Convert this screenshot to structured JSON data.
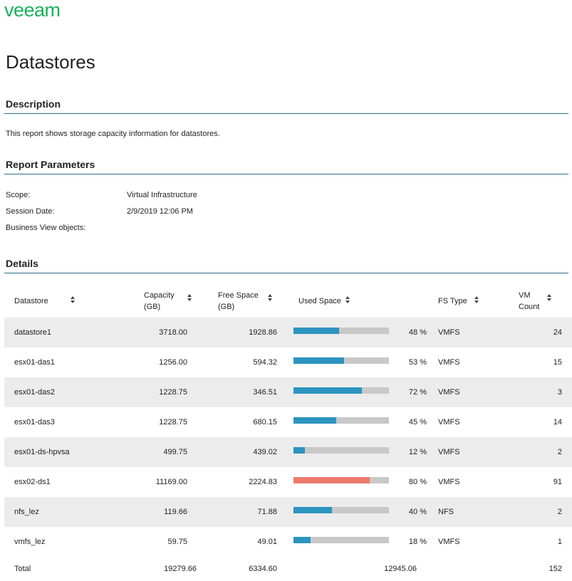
{
  "brand": {
    "name": "veeam",
    "color": "#17b35a"
  },
  "page": {
    "title": "Datastores"
  },
  "sections": {
    "description": "Description",
    "parameters": "Report Parameters",
    "details": "Details"
  },
  "description_text": "This report shows storage capacity information for datastores.",
  "parameters": [
    {
      "label": "Scope:",
      "value": "Virtual Infrastructure"
    },
    {
      "label": "Session Date:",
      "value": "2/9/2019 12:06 PM"
    },
    {
      "label": "Business View objects:",
      "value": ""
    }
  ],
  "table": {
    "headers": {
      "datastore": "Datastore",
      "capacity_1": "Capacity",
      "capacity_2": "(GB)",
      "free_1": "Free Space",
      "free_2": "(GB)",
      "used": "Used Space",
      "fs": "FS Type",
      "vm_1": "VM",
      "vm_2": "Count"
    },
    "rows": [
      {
        "name": "datastore1",
        "capacity": "3718.00",
        "free": "1928.86",
        "used_pct": 48,
        "used_label": "48 %",
        "fs": "VMFS",
        "vm": "24"
      },
      {
        "name": "esx01-das1",
        "capacity": "1256.00",
        "free": "594.32",
        "used_pct": 53,
        "used_label": "53 %",
        "fs": "VMFS",
        "vm": "15"
      },
      {
        "name": "esx01-das2",
        "capacity": "1228.75",
        "free": "346.51",
        "used_pct": 72,
        "used_label": "72 %",
        "fs": "VMFS",
        "vm": "3"
      },
      {
        "name": "esx01-das3",
        "capacity": "1228.75",
        "free": "680.15",
        "used_pct": 45,
        "used_label": "45 %",
        "fs": "VMFS",
        "vm": "14"
      },
      {
        "name": "esx01-ds-hpvsa",
        "capacity": "499.75",
        "free": "439.02",
        "used_pct": 12,
        "used_label": "12 %",
        "fs": "VMFS",
        "vm": "2"
      },
      {
        "name": "esx02-ds1",
        "capacity": "11169.00",
        "free": "2224.83",
        "used_pct": 80,
        "used_label": "80 %",
        "fs": "VMFS",
        "vm": "91"
      },
      {
        "name": "nfs_lez",
        "capacity": "119.66",
        "free": "71.88",
        "used_pct": 40,
        "used_label": "40 %",
        "fs": "NFS",
        "vm": "2"
      },
      {
        "name": "vmfs_lez",
        "capacity": "59.75",
        "free": "49.01",
        "used_pct": 18,
        "used_label": "18 %",
        "fs": "VMFS",
        "vm": "1"
      }
    ],
    "total": {
      "label": "Total",
      "capacity": "19279.66",
      "free": "6334.60",
      "used": "12945.06",
      "vm": "152"
    }
  },
  "colors": {
    "rule": "#2f6f8a",
    "bar_normal": "#2b94bf",
    "bar_warning": "#ec7a6b",
    "bar_track": "#c8c8c8",
    "row_alt": "#ececec"
  }
}
